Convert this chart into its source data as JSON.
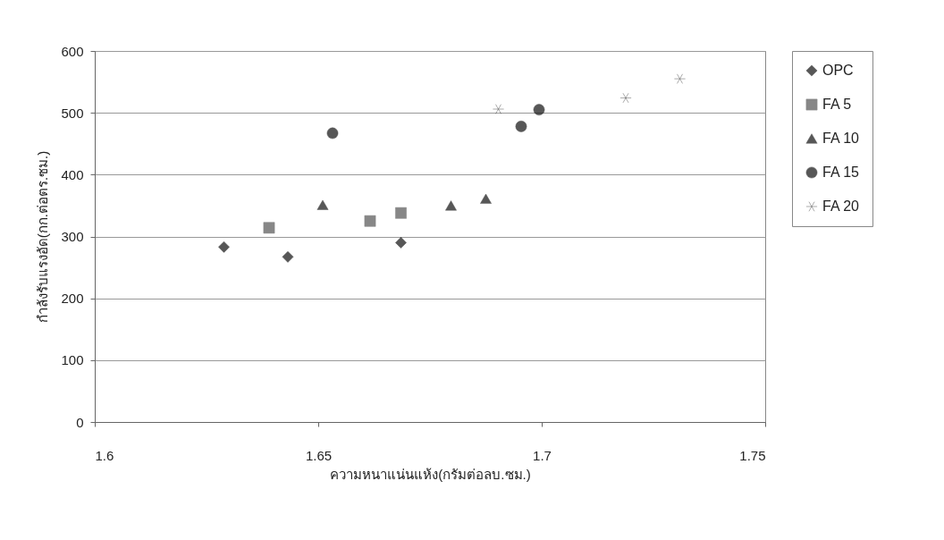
{
  "chart_data": {
    "type": "scatter",
    "xlabel": "ความหนาแน่นแห้ง(กรัมต่อลบ.ซม.)",
    "ylabel": "กำลังรับแรงอัด(กก.ต่อตร.ซม.)",
    "xlim": [
      1.6,
      1.75
    ],
    "xticks": [
      1.6,
      1.65,
      1.7,
      1.75
    ],
    "ylim": [
      0,
      600
    ],
    "yticks": [
      0,
      100,
      200,
      300,
      400,
      500,
      600
    ],
    "grid": "y",
    "legend": "right",
    "series": [
      {
        "name": "OPC",
        "color": "#111111",
        "marker": "diamond",
        "x": [
          1.6289,
          1.6432,
          1.6685
        ],
        "values": [
          283,
          267,
          290
        ]
      },
      {
        "name": "FA 5",
        "color": "#555555",
        "marker": "square",
        "x": [
          1.639,
          1.6616,
          1.6685
        ],
        "values": [
          314,
          325,
          338
        ]
      },
      {
        "name": "FA 10",
        "color": "#111111",
        "marker": "triangle",
        "x": [
          1.651,
          1.6797,
          1.6875
        ],
        "values": [
          351,
          350,
          361
        ]
      },
      {
        "name": "FA 15",
        "color": "#111111",
        "marker": "circle",
        "x": [
          1.6532,
          1.6954,
          1.6994
        ],
        "values": [
          467,
          478,
          505
        ]
      },
      {
        "name": "FA 20",
        "color": "#111111",
        "marker": "cross",
        "x": [
          1.6903,
          1.7188,
          1.7309
        ],
        "values": [
          506,
          524,
          555
        ]
      }
    ]
  }
}
